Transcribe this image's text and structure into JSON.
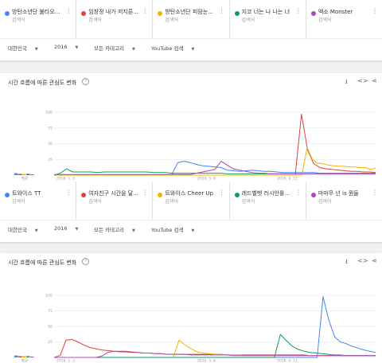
{
  "icons": {
    "more": "more-vertical-icon",
    "help": "help-circle-icon",
    "download": "download-icon",
    "embed": "embed-code-icon",
    "share": "share-icon"
  },
  "sections": [
    {
      "terms": [
        {
          "name": "방탄소년단 불타오...",
          "type": "검색어",
          "color": "#4285f4"
        },
        {
          "name": "임창정 내가 저지른...",
          "type": "검색어",
          "color": "#db4437"
        },
        {
          "name": "방탄소년단 피땀눈...",
          "type": "검색어",
          "color": "#f4b400"
        },
        {
          "name": "지코 너는 나 나는 너",
          "type": "검색어",
          "color": "#0f9d58"
        },
        {
          "name": "엑소 Monster",
          "type": "검색어",
          "color": "#ab47bc"
        }
      ],
      "filters": {
        "region": "대한민국",
        "year": "2016",
        "category": "모든 카테고리",
        "property": "YouTube 검색"
      },
      "chart_title": "시간 흐름에 따른 관심도 변화",
      "avg_label": "평균",
      "avg_values": [
        3,
        2,
        2,
        2,
        1
      ]
    },
    {
      "terms": [
        {
          "name": "트와이스 TT",
          "type": "검색어",
          "color": "#4285f4"
        },
        {
          "name": "여자친구 시간을 달...",
          "type": "검색어",
          "color": "#db4437"
        },
        {
          "name": "트와이스 Cheer Up",
          "type": "검색어",
          "color": "#f4b400"
        },
        {
          "name": "레드벨벳 러시안룰...",
          "type": "검색어",
          "color": "#0f9d58"
        },
        {
          "name": "마마무 넌 is 뭔들",
          "type": "검색어",
          "color": "#ab47bc"
        }
      ],
      "filters": {
        "region": "대한민국",
        "year": "2016",
        "category": "모든 카테고리",
        "property": "YouTube 검색"
      },
      "chart_title": "시간 흐름에 따른 관심도 변화",
      "avg_label": "평균",
      "avg_values": [
        3,
        2,
        2,
        2,
        1
      ]
    }
  ],
  "chart_data": [
    {
      "type": "line",
      "yticks": [
        25,
        50,
        75,
        100
      ],
      "xtick_labels": [
        "2016. 1. 3.",
        "2016. 5. 8.",
        "2016. 9. 11."
      ],
      "ylim": [
        0,
        100
      ],
      "series": [
        {
          "name": "방탄소년단 불타오...",
          "color": "#4285f4",
          "values": [
            0,
            0,
            0,
            0,
            0,
            0,
            0,
            0,
            0,
            0,
            0,
            0,
            0,
            0,
            0,
            0,
            0,
            0,
            0,
            0,
            20,
            22,
            20,
            17,
            15,
            14,
            13,
            12,
            8,
            7,
            6,
            7,
            8,
            7,
            6,
            6,
            5,
            4,
            4,
            4,
            4,
            4,
            4,
            3,
            3,
            3,
            3,
            3,
            3,
            3,
            3,
            3,
            3
          ]
        },
        {
          "name": "임창정 내가 저지른...",
          "color": "#db4437",
          "values": [
            0,
            0,
            0,
            0,
            0,
            0,
            0,
            0,
            0,
            0,
            0,
            0,
            0,
            0,
            0,
            0,
            0,
            0,
            0,
            0,
            0,
            0,
            0,
            0,
            0,
            0,
            0,
            0,
            0,
            0,
            0,
            0,
            0,
            0,
            0,
            0,
            0,
            0,
            0,
            0,
            97,
            40,
            18,
            12,
            10,
            9,
            8,
            7,
            6,
            6,
            5,
            5,
            4
          ]
        },
        {
          "name": "방탄소년단 피땀눈...",
          "color": "#f4b400",
          "values": [
            0,
            0,
            0,
            0,
            0,
            0,
            0,
            0,
            0,
            0,
            0,
            0,
            0,
            0,
            0,
            0,
            0,
            0,
            0,
            0,
            0,
            0,
            0,
            0,
            0,
            0,
            0,
            0,
            0,
            0,
            0,
            0,
            0,
            0,
            0,
            0,
            0,
            0,
            0,
            0,
            0,
            0,
            0,
            0,
            0,
            0,
            0,
            0,
            44,
            25,
            19,
            18,
            16,
            15,
            14,
            14,
            13,
            13,
            12,
            12,
            9,
            11
          ]
        },
        {
          "name": "지코 너는 나 나는 너",
          "color": "#0f9d58",
          "values": [
            0,
            3,
            10,
            5,
            5,
            5,
            5,
            4,
            5,
            5,
            5,
            5,
            5,
            5,
            5,
            5,
            4,
            4,
            4,
            3,
            3,
            3,
            3,
            3,
            3,
            3,
            3,
            3,
            2,
            2,
            2,
            2,
            2,
            2,
            2,
            2,
            2,
            2,
            2,
            2,
            2,
            2,
            2,
            2,
            2,
            2,
            2,
            2,
            2,
            2,
            2,
            2,
            2
          ]
        },
        {
          "name": "엑소 Monster",
          "color": "#ab47bc",
          "values": [
            1,
            1,
            1,
            1,
            1,
            1,
            1,
            1,
            1,
            1,
            1,
            1,
            1,
            1,
            1,
            1,
            1,
            1,
            1,
            1,
            1,
            1,
            1,
            3,
            5,
            7,
            9,
            22,
            16,
            10,
            8,
            6,
            4,
            3,
            3,
            2,
            2,
            2,
            2,
            2,
            2,
            2,
            2,
            2,
            2,
            2,
            2,
            2,
            2,
            2,
            2,
            2,
            2
          ]
        }
      ]
    },
    {
      "type": "line",
      "yticks": [
        25,
        50,
        75,
        100
      ],
      "xtick_labels": [
        "2016. 1. 3.",
        "2016. 5. 8.",
        "2016. 9. 11."
      ],
      "ylim": [
        0,
        100
      ],
      "series": [
        {
          "name": "트와이스 TT",
          "color": "#4285f4",
          "values": [
            0,
            0,
            0,
            0,
            0,
            0,
            0,
            0,
            0,
            0,
            0,
            0,
            0,
            0,
            0,
            0,
            0,
            0,
            0,
            0,
            0,
            0,
            0,
            0,
            0,
            0,
            0,
            0,
            0,
            0,
            0,
            0,
            0,
            0,
            0,
            0,
            0,
            0,
            0,
            0,
            0,
            0,
            0,
            0,
            0,
            0,
            98,
            60,
            33,
            25,
            22,
            18,
            15,
            12,
            10,
            8
          ]
        },
        {
          "name": "여자친구 시간을 달...",
          "color": "#db4437",
          "values": [
            0,
            3,
            28,
            29,
            25,
            20,
            16,
            14,
            12,
            11,
            10,
            9,
            9,
            8,
            8,
            7,
            7,
            6,
            6,
            5,
            5,
            5,
            5,
            5,
            5,
            5,
            5,
            5,
            5,
            4,
            4,
            4,
            4,
            4,
            4,
            4,
            4,
            4,
            4,
            4,
            4,
            4,
            4,
            3,
            3,
            3,
            3,
            3,
            3,
            3,
            3,
            3,
            3,
            3,
            3
          ]
        },
        {
          "name": "트와이스 Cheer Up",
          "color": "#f4b400",
          "values": [
            0,
            0,
            0,
            0,
            0,
            0,
            0,
            0,
            0,
            0,
            0,
            0,
            0,
            0,
            0,
            0,
            0,
            0,
            0,
            0,
            0,
            28,
            20,
            14,
            9,
            7,
            6,
            5,
            5,
            4,
            4,
            4,
            3,
            3,
            3,
            3,
            3,
            3,
            3,
            3,
            3,
            3,
            3,
            3,
            3,
            3,
            3,
            3,
            3,
            3,
            3,
            3,
            3,
            3,
            3
          ]
        },
        {
          "name": "레드벨벳 러시안룰...",
          "color": "#0f9d58",
          "values": [
            0,
            0,
            0,
            0,
            0,
            0,
            0,
            0,
            0,
            0,
            0,
            0,
            0,
            0,
            0,
            0,
            0,
            0,
            0,
            0,
            0,
            0,
            0,
            0,
            0,
            0,
            0,
            0,
            0,
            0,
            0,
            0,
            0,
            0,
            0,
            0,
            0,
            0,
            37,
            27,
            18,
            13,
            10,
            8,
            7,
            6,
            5,
            4,
            4,
            3,
            3,
            3,
            3,
            3,
            3
          ]
        },
        {
          "name": "마마무 넌 is 뭔들",
          "color": "#ab47bc",
          "values": [
            0,
            0,
            0,
            0,
            0,
            0,
            0,
            0,
            2,
            8,
            10,
            10,
            10,
            9,
            8,
            7,
            7,
            6,
            6,
            5,
            5,
            5,
            5,
            4,
            4,
            4,
            4,
            4,
            4,
            4,
            3,
            3,
            3,
            3,
            3,
            3,
            3,
            3,
            3,
            3,
            3,
            3,
            3,
            3,
            3,
            3,
            3,
            3,
            3,
            3,
            3,
            3,
            3,
            3,
            3
          ]
        }
      ]
    }
  ]
}
